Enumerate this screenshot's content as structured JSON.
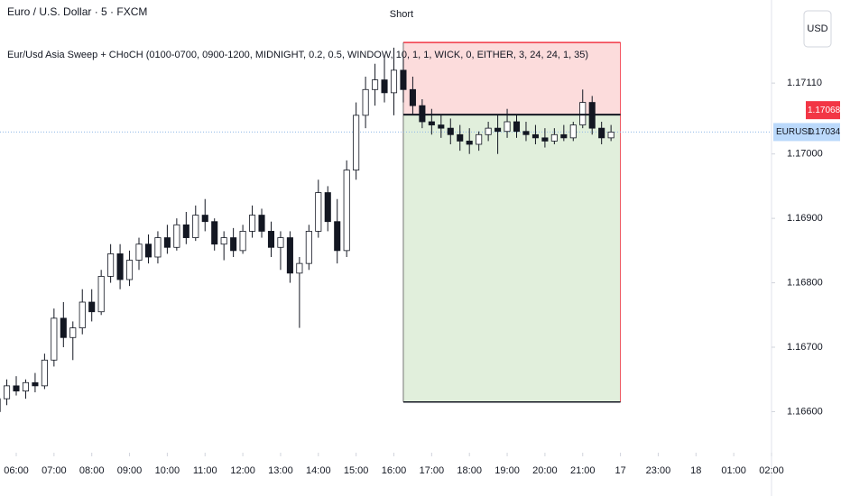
{
  "chart_data": {
    "type": "candlestick",
    "title": "Euro / U.S. Dollar · 5 · FXCM",
    "subtitle": "Eur/Usd Asia Sweep + CHoCH (0100-0700, 0900-1200, MIDNIGHT, 0.2, 0.5, WINDOW, 10, 1, 1, WICK, 0, EITHER, 3, 24, 24, 1, 35)",
    "currency": "USD",
    "x": [
      5.5,
      5.75,
      6,
      6.25,
      6.5,
      6.75,
      7,
      7.25,
      7.5,
      7.75,
      8,
      8.25,
      8.5,
      8.75,
      9,
      9.25,
      9.5,
      9.75,
      10,
      10.25,
      10.5,
      10.75,
      11,
      11.25,
      11.5,
      11.75,
      12,
      12.25,
      12.5,
      12.75,
      13,
      13.25,
      13.5,
      13.75,
      14,
      14.25,
      14.5,
      14.75,
      15,
      15.25,
      15.5,
      15.75,
      16,
      16.25,
      16.5,
      16.75,
      17,
      17.25,
      17.5,
      17.75,
      18,
      18.25,
      18.5,
      18.75,
      19,
      19.25,
      19.5,
      19.75,
      20,
      20.25,
      20.5,
      20.75,
      21,
      21.25,
      21.5,
      21.75
    ],
    "open": [
      1.166,
      1.1662,
      1.1664,
      1.16632,
      1.16645,
      1.1664,
      1.1668,
      1.16745,
      1.16715,
      1.1673,
      1.1677,
      1.16755,
      1.1681,
      1.16845,
      1.16805,
      1.16835,
      1.1686,
      1.1684,
      1.1687,
      1.16855,
      1.1689,
      1.1687,
      1.16905,
      1.16895,
      1.1686,
      1.1687,
      1.1685,
      1.1688,
      1.16905,
      1.1688,
      1.16855,
      1.1687,
      1.16815,
      1.1683,
      1.1688,
      1.1694,
      1.16895,
      1.1685,
      1.16975,
      1.1706,
      1.171,
      1.17115,
      1.17095,
      1.1713,
      1.171,
      1.17075,
      1.1705,
      1.17045,
      1.1704,
      1.1703,
      1.1702,
      1.17015,
      1.1703,
      1.1704,
      1.17035,
      1.1705,
      1.17035,
      1.1703,
      1.17025,
      1.1702,
      1.1703,
      1.17025,
      1.17045,
      1.1708,
      1.1704,
      1.17025
    ],
    "high": [
      1.16625,
      1.1665,
      1.16655,
      1.1665,
      1.1666,
      1.1669,
      1.1676,
      1.1677,
      1.1674,
      1.1679,
      1.1679,
      1.1682,
      1.1686,
      1.1686,
      1.1685,
      1.1687,
      1.16875,
      1.1688,
      1.1689,
      1.169,
      1.1691,
      1.1692,
      1.1693,
      1.169,
      1.1688,
      1.16885,
      1.1689,
      1.1692,
      1.16915,
      1.16895,
      1.1688,
      1.1688,
      1.1684,
      1.1689,
      1.1696,
      1.1695,
      1.1693,
      1.1699,
      1.1708,
      1.1712,
      1.1714,
      1.1715,
      1.17165,
      1.1715,
      1.1712,
      1.17085,
      1.1707,
      1.1706,
      1.17055,
      1.17045,
      1.1704,
      1.17035,
      1.1705,
      1.1706,
      1.1707,
      1.1706,
      1.1705,
      1.17045,
      1.1704,
      1.1704,
      1.17045,
      1.1705,
      1.171,
      1.1709,
      1.1705,
      1.17045
    ],
    "low": [
      1.1659,
      1.1661,
      1.16625,
      1.1662,
      1.1663,
      1.16635,
      1.1667,
      1.167,
      1.1668,
      1.1672,
      1.1674,
      1.1675,
      1.168,
      1.1679,
      1.16795,
      1.1682,
      1.1683,
      1.1683,
      1.16845,
      1.1685,
      1.1686,
      1.16865,
      1.1688,
      1.1685,
      1.16835,
      1.1684,
      1.16845,
      1.1687,
      1.1687,
      1.1684,
      1.1682,
      1.168,
      1.1673,
      1.1682,
      1.1687,
      1.1688,
      1.1683,
      1.1684,
      1.1696,
      1.1704,
      1.17075,
      1.1708,
      1.1706,
      1.1708,
      1.1706,
      1.1704,
      1.1703,
      1.17025,
      1.17015,
      1.17005,
      1.17,
      1.17005,
      1.1702,
      1.17,
      1.17025,
      1.17025,
      1.1702,
      1.17015,
      1.1701,
      1.17015,
      1.1702,
      1.1702,
      1.1704,
      1.1703,
      1.17015,
      1.1702
    ],
    "close": [
      1.1662,
      1.1664,
      1.16632,
      1.16645,
      1.1664,
      1.1668,
      1.16745,
      1.16715,
      1.1673,
      1.1677,
      1.16755,
      1.1681,
      1.16845,
      1.16805,
      1.16835,
      1.1686,
      1.1684,
      1.1687,
      1.16855,
      1.1689,
      1.1687,
      1.16905,
      1.16895,
      1.1686,
      1.1687,
      1.1685,
      1.1688,
      1.16905,
      1.1688,
      1.16855,
      1.1687,
      1.16815,
      1.1683,
      1.1688,
      1.1694,
      1.16895,
      1.1685,
      1.16975,
      1.1706,
      1.171,
      1.17115,
      1.17095,
      1.1713,
      1.171,
      1.17075,
      1.1705,
      1.17045,
      1.1704,
      1.1703,
      1.1702,
      1.17015,
      1.1703,
      1.1704,
      1.17035,
      1.1705,
      1.17035,
      1.1703,
      1.17025,
      1.1702,
      1.1703,
      1.17025,
      1.17045,
      1.1708,
      1.1704,
      1.17025,
      1.17034
    ],
    "xlim": [
      5.57,
      26
    ],
    "xticks": [
      {
        "value": 6,
        "label": "06:00"
      },
      {
        "value": 7,
        "label": "07:00"
      },
      {
        "value": 8,
        "label": "08:00"
      },
      {
        "value": 9,
        "label": "09:00"
      },
      {
        "value": 10,
        "label": "10:00"
      },
      {
        "value": 11,
        "label": "11:00"
      },
      {
        "value": 12,
        "label": "12:00"
      },
      {
        "value": 13,
        "label": "13:00"
      },
      {
        "value": 14,
        "label": "14:00"
      },
      {
        "value": 15,
        "label": "15:00"
      },
      {
        "value": 16,
        "label": "16:00"
      },
      {
        "value": 17,
        "label": "17:00"
      },
      {
        "value": 18,
        "label": "18:00"
      },
      {
        "value": 19,
        "label": "19:00"
      },
      {
        "value": 20,
        "label": "20:00"
      },
      {
        "value": 21,
        "label": "21:00"
      },
      {
        "value": 22,
        "label": "17"
      },
      {
        "value": 23,
        "label": "23:00"
      },
      {
        "value": 24,
        "label": "18"
      },
      {
        "value": 25,
        "label": "01:00"
      },
      {
        "value": 26,
        "label": "02:00"
      }
    ],
    "ylim": [
      1.16539,
      1.17239
    ],
    "yticks": [
      {
        "value": 1.166,
        "label": "1.16600"
      },
      {
        "value": 1.167,
        "label": "1.16700"
      },
      {
        "value": 1.168,
        "label": "1.16800"
      },
      {
        "value": 1.169,
        "label": "1.16900"
      },
      {
        "value": 1.17,
        "label": "1.17000"
      },
      {
        "value": 1.1711,
        "label": "1.17110"
      }
    ],
    "position": {
      "label": "Short",
      "x_start": 16.25,
      "x_end": 22,
      "stop": 1.17173,
      "entry": 1.17061,
      "target": 1.16615
    },
    "marker_price": {
      "value": 1.17068,
      "label": "1.17068",
      "color": "#f23645"
    },
    "last_price": {
      "name": "EURUSD",
      "value": 1.17034,
      "label": "1.17034",
      "color": "#bbd9fb"
    }
  }
}
